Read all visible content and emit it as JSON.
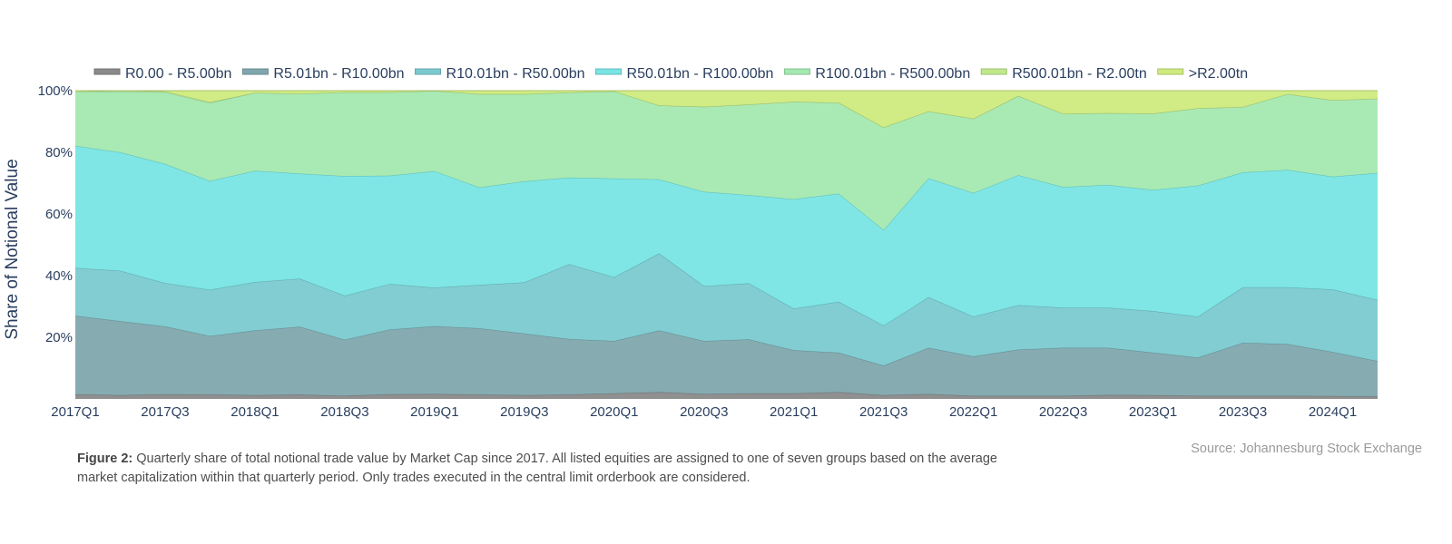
{
  "chart_data": {
    "type": "area",
    "stacked": true,
    "normalized": true,
    "ylabel": "Share of Notional Value",
    "ylim": [
      0,
      100
    ],
    "y_ticks": [
      "20%",
      "40%",
      "60%",
      "80%",
      "100%"
    ],
    "y_tick_values": [
      20,
      40,
      60,
      80,
      100
    ],
    "x": [
      "2017Q1",
      "2017Q2",
      "2017Q3",
      "2017Q4",
      "2018Q1",
      "2018Q2",
      "2018Q3",
      "2018Q4",
      "2019Q1",
      "2019Q2",
      "2019Q3",
      "2019Q4",
      "2020Q1",
      "2020Q2",
      "2020Q3",
      "2020Q4",
      "2021Q1",
      "2021Q2",
      "2021Q3",
      "2021Q4",
      "2022Q1",
      "2022Q2",
      "2022Q3",
      "2022Q4",
      "2023Q1",
      "2023Q2",
      "2023Q3",
      "2023Q4",
      "2024Q1",
      "2024Q2"
    ],
    "x_tick_labels": [
      "2017Q1",
      "2017Q3",
      "2018Q1",
      "2018Q3",
      "2019Q1",
      "2019Q3",
      "2020Q1",
      "2020Q3",
      "2021Q1",
      "2021Q3",
      "2022Q1",
      "2022Q3",
      "2023Q1",
      "2023Q3",
      "2024Q1"
    ],
    "series": [
      {
        "name": "R0.00 - R5.00bn",
        "color": "#8a8a8a",
        "values": [
          1.5,
          1.2,
          1.5,
          1.4,
          1.2,
          1.4,
          1.0,
          1.5,
          1.6,
          1.4,
          1.2,
          1.4,
          1.8,
          2.2,
          1.6,
          1.8,
          1.8,
          2.2,
          1.2,
          1.6,
          1.0,
          1.0,
          1.0,
          1.3,
          1.2,
          1.0,
          1.0,
          1.0,
          0.9,
          0.8
        ]
      },
      {
        "name": "R5.01bn - R10.00bn",
        "color": "#7fa8ae",
        "values": [
          25.5,
          24.0,
          22.0,
          19.0,
          21.0,
          22.0,
          18.2,
          21.0,
          22.0,
          21.5,
          20.0,
          18.0,
          17.0,
          20.0,
          17.2,
          17.5,
          14.0,
          12.8,
          9.6,
          15.0,
          12.8,
          15.0,
          15.6,
          15.3,
          13.8,
          12.4,
          17.2,
          16.8,
          14.3,
          11.5
        ]
      },
      {
        "name": "R10.01bn - R50.00bn",
        "color": "#7bcad0",
        "values": [
          15.5,
          16.4,
          14.1,
          15.0,
          15.7,
          15.6,
          14.3,
          14.8,
          12.5,
          14.1,
          16.6,
          24.3,
          20.7,
          25.0,
          17.8,
          18.2,
          13.5,
          16.5,
          13.0,
          16.4,
          12.9,
          14.4,
          13.0,
          13.0,
          13.5,
          13.3,
          18.0,
          18.4,
          20.3,
          19.8
        ]
      },
      {
        "name": "R50.01bn - R100.00bn",
        "color": "#78e5e4",
        "values": [
          39.6,
          38.4,
          38.6,
          35.3,
          36.1,
          34.1,
          38.8,
          35.1,
          37.8,
          31.6,
          32.8,
          28.1,
          32.0,
          24.0,
          30.6,
          28.6,
          35.5,
          35.1,
          31.0,
          38.6,
          40.1,
          42.2,
          39.1,
          39.8,
          39.3,
          42.5,
          37.3,
          38.1,
          36.6,
          41.2
        ]
      },
      {
        "name": "R100.01bn - R500.00bn",
        "color": "#a4e9b0",
        "values": [
          17.6,
          19.7,
          23.3,
          25.3,
          25.3,
          25.9,
          27.2,
          27.1,
          26.0,
          30.3,
          28.3,
          27.6,
          28.3,
          24.0,
          27.6,
          29.4,
          31.6,
          29.5,
          33.3,
          21.7,
          24.1,
          25.7,
          23.8,
          23.3,
          24.8,
          25.1,
          21.2,
          24.6,
          24.8,
          24.1
        ]
      },
      {
        "name": "R500.01bn - R2.00tn",
        "color": "#c1e98c",
        "values": [
          0.0,
          0.3,
          0.3,
          0.3,
          0.0,
          0.0,
          0.0,
          0.0,
          0.0,
          0.0,
          0.0,
          0.0,
          0.0,
          0.0,
          0.0,
          0.0,
          0.0,
          0.0,
          0.0,
          0.0,
          0.0,
          0.0,
          0.0,
          0.0,
          0.0,
          0.0,
          0.0,
          0.0,
          0.0,
          0.0
        ]
      },
      {
        "name": ">R2.00tn",
        "color": "#cfeb7e",
        "values": [
          0.3,
          0.0,
          0.2,
          3.7,
          0.7,
          1.0,
          0.5,
          0.5,
          0.1,
          1.1,
          1.1,
          0.6,
          0.2,
          4.8,
          5.2,
          4.5,
          3.6,
          3.9,
          11.9,
          6.7,
          9.1,
          1.7,
          7.5,
          7.3,
          7.4,
          5.7,
          5.3,
          1.1,
          3.1,
          2.6
        ]
      }
    ]
  },
  "caption": {
    "label": "Figure 2:",
    "text": "Quarterly share of total notional trade value by Market Cap since 2017. All listed equities are assigned to one of seven groups based on the average market capitalization within that quarterly period. Only trades executed in the central limit orderbook are considered."
  },
  "source": "Source: Johannesburg Stock Exchange"
}
